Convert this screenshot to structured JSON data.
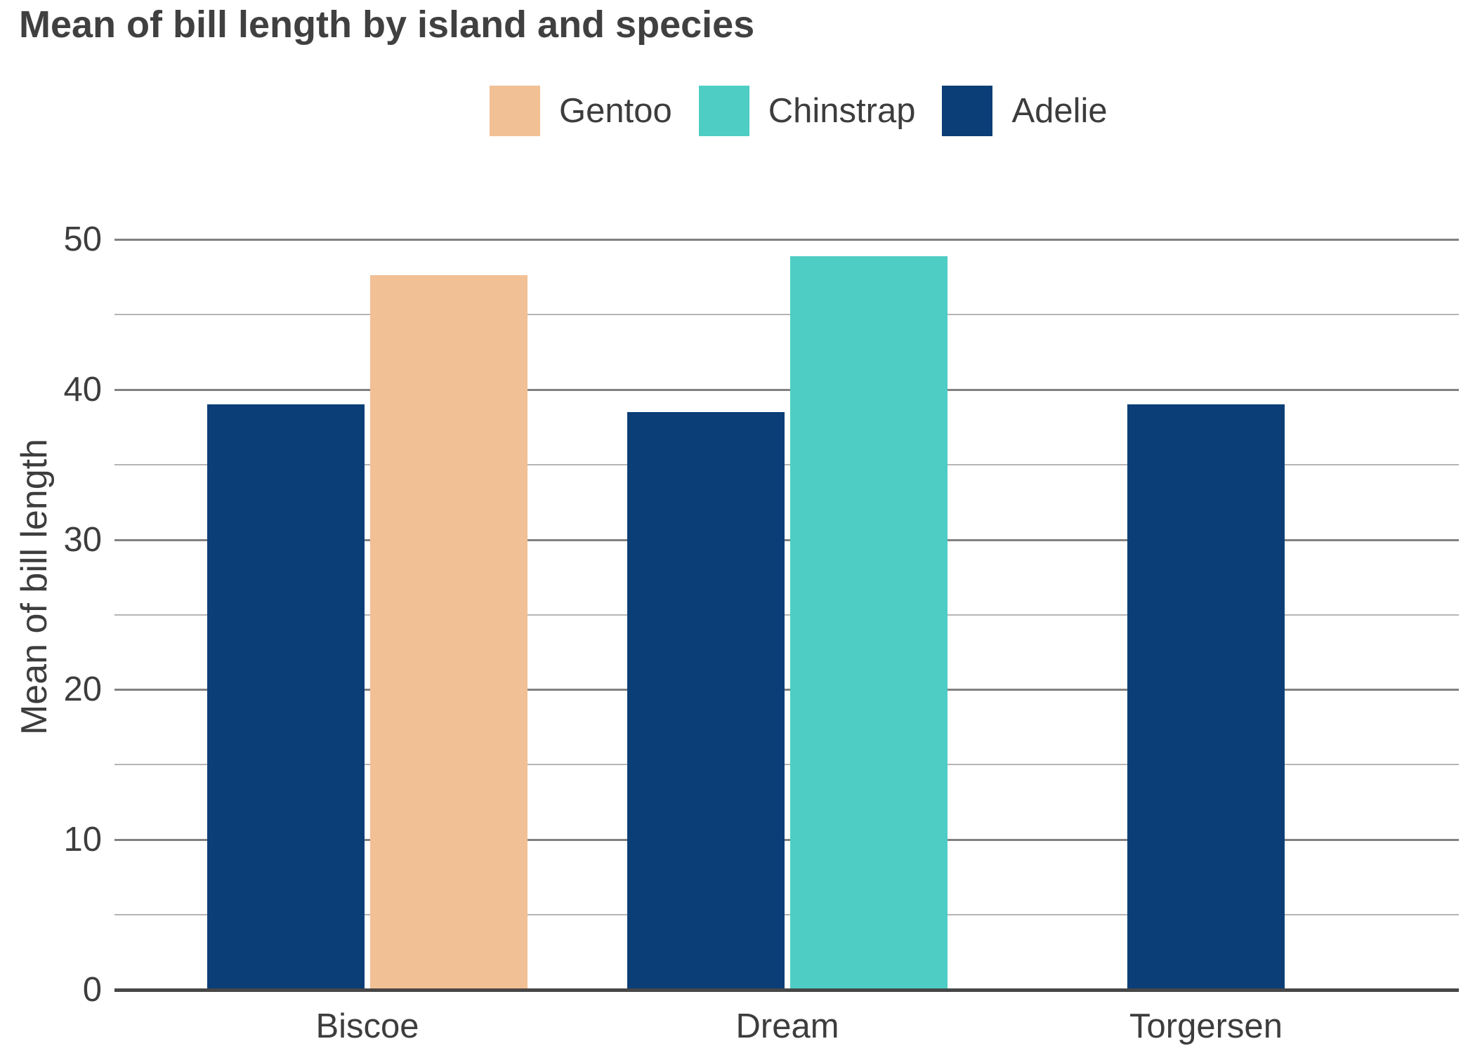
{
  "title": "Mean of bill length by island and species",
  "legend": {
    "items": [
      {
        "label": "Gentoo",
        "color": "#f2c095"
      },
      {
        "label": "Chinstrap",
        "color": "#4ecdc4"
      },
      {
        "label": "Adelie",
        "color": "#0b3e77"
      }
    ]
  },
  "chart_data": {
    "type": "bar",
    "title": "Mean of bill length by island and species",
    "xlabel": "",
    "ylabel": "Mean of bill length",
    "ylim": [
      0,
      50
    ],
    "yticks_major": [
      0,
      10,
      20,
      30,
      40,
      50
    ],
    "yticks_minor": [
      5,
      15,
      25,
      35,
      45
    ],
    "grid": "on",
    "legend_position": "top-center",
    "categories": [
      "Biscoe",
      "Dream",
      "Torgersen"
    ],
    "series": [
      {
        "name": "Gentoo",
        "color": "#f2c095"
      },
      {
        "name": "Chinstrap",
        "color": "#4ecdc4"
      },
      {
        "name": "Adelie",
        "color": "#0b3e77"
      }
    ],
    "groups": [
      {
        "category": "Biscoe",
        "bars": [
          {
            "series": "Adelie",
            "value": 39.0
          },
          {
            "series": "Gentoo",
            "value": 47.6
          }
        ]
      },
      {
        "category": "Dream",
        "bars": [
          {
            "series": "Adelie",
            "value": 38.5
          },
          {
            "series": "Chinstrap",
            "value": 48.9
          }
        ]
      },
      {
        "category": "Torgersen",
        "bars": [
          {
            "series": "Adelie",
            "value": 39.0
          }
        ]
      }
    ]
  }
}
